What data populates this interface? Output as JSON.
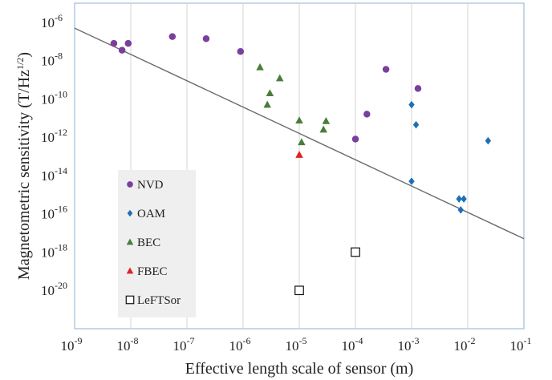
{
  "chart_data": {
    "type": "scatter",
    "xlabel": "Effective length scale of sensor (m)",
    "ylabel": "Magnetometric sensitivity (T/Hz",
    "ylabel_sup": "1/2",
    "ylabel_close": ")",
    "x_scale": "log",
    "y_scale": "log",
    "xlim": [
      1e-09,
      0.1
    ],
    "ylim": [
      1e-22,
      1e-05
    ],
    "grid": "vertical",
    "legend_position": "lower-left",
    "x_ticks": [
      {
        "v": 1e-09,
        "base": "10",
        "exp": "-9"
      },
      {
        "v": 1e-08,
        "base": "10",
        "exp": "-8"
      },
      {
        "v": 1e-07,
        "base": "10",
        "exp": "-7"
      },
      {
        "v": 1e-06,
        "base": "10",
        "exp": "-6"
      },
      {
        "v": 1e-05,
        "base": "10",
        "exp": "-5"
      },
      {
        "v": 0.0001,
        "base": "10",
        "exp": "-4"
      },
      {
        "v": 0.001,
        "base": "10",
        "exp": "-3"
      },
      {
        "v": 0.01,
        "base": "10",
        "exp": "-2"
      },
      {
        "v": 0.1,
        "base": "10",
        "exp": "-1"
      }
    ],
    "y_ticks": [
      {
        "v": 1e-06,
        "base": "10",
        "exp": "-6"
      },
      {
        "v": 1e-08,
        "base": "10",
        "exp": "-8"
      },
      {
        "v": 1e-10,
        "base": "10",
        "exp": "-10"
      },
      {
        "v": 1e-12,
        "base": "10",
        "exp": "-12"
      },
      {
        "v": 1e-14,
        "base": "10",
        "exp": "-14"
      },
      {
        "v": 1e-16,
        "base": "10",
        "exp": "-16"
      },
      {
        "v": 1e-18,
        "base": "10",
        "exp": "-18"
      },
      {
        "v": 1e-20,
        "base": "10",
        "exp": "-20"
      }
    ],
    "series": [
      {
        "name": "NVD",
        "marker": "circle",
        "color": "#7a3f9d",
        "points": [
          {
            "x": 5e-09,
            "y": 8e-08
          },
          {
            "x": 7e-09,
            "y": 3.5e-08
          },
          {
            "x": 9e-09,
            "y": 8e-08
          },
          {
            "x": 5.5e-08,
            "y": 1.8e-07
          },
          {
            "x": 2.2e-07,
            "y": 1.4e-07
          },
          {
            "x": 9e-07,
            "y": 3e-08
          },
          {
            "x": 0.0001,
            "y": 8e-13
          },
          {
            "x": 0.00016,
            "y": 1.6e-11
          },
          {
            "x": 0.00035,
            "y": 3.5e-09
          },
          {
            "x": 0.0013,
            "y": 3.5e-10
          }
        ]
      },
      {
        "name": "OAM",
        "marker": "diamond",
        "color": "#1f6fb5",
        "points": [
          {
            "x": 0.001,
            "y": 5e-11
          },
          {
            "x": 0.0012,
            "y": 4.5e-12
          },
          {
            "x": 0.001,
            "y": 5e-15
          },
          {
            "x": 0.007,
            "y": 6e-16
          },
          {
            "x": 0.0085,
            "y": 6e-16
          },
          {
            "x": 0.0075,
            "y": 1.6e-16
          },
          {
            "x": 0.023,
            "y": 6.5e-13
          }
        ]
      },
      {
        "name": "BEC",
        "marker": "triangle",
        "color": "#4a7d3a",
        "points": [
          {
            "x": 2e-06,
            "y": 4.5e-09
          },
          {
            "x": 4.5e-06,
            "y": 1.2e-09
          },
          {
            "x": 3e-06,
            "y": 2e-10
          },
          {
            "x": 2.7e-06,
            "y": 5e-11
          },
          {
            "x": 1e-05,
            "y": 7.5e-12
          },
          {
            "x": 3e-05,
            "y": 7e-12
          },
          {
            "x": 2.7e-05,
            "y": 2.5e-12
          },
          {
            "x": 1.1e-05,
            "y": 5.5e-13
          }
        ]
      },
      {
        "name": "FBEC",
        "marker": "triangle",
        "color": "#e02020",
        "points": [
          {
            "x": 1e-05,
            "y": 1.2e-13
          }
        ]
      },
      {
        "name": "LeFTSor",
        "marker": "square-open",
        "color": "#111111",
        "points": [
          {
            "x": 0.0001,
            "y": 1e-18
          },
          {
            "x": 1e-05,
            "y": 1e-20
          }
        ]
      }
    ],
    "trend_line": {
      "color": "#6b6b6b",
      "x": [
        1e-09,
        0.1
      ],
      "y": [
        5e-07,
        5e-18
      ]
    }
  }
}
